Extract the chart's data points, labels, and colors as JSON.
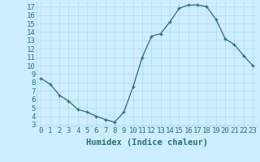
{
  "x": [
    0,
    1,
    2,
    3,
    4,
    5,
    6,
    7,
    8,
    9,
    10,
    11,
    12,
    13,
    14,
    15,
    16,
    17,
    18,
    19,
    20,
    21,
    22,
    23
  ],
  "y": [
    8.5,
    7.8,
    6.5,
    5.8,
    4.8,
    4.5,
    4.0,
    3.6,
    3.3,
    4.5,
    7.5,
    11.0,
    13.5,
    13.8,
    15.2,
    16.8,
    17.2,
    17.2,
    17.0,
    15.5,
    13.2,
    12.5,
    11.2,
    10.0
  ],
  "xlabel": "Humidex (Indice chaleur)",
  "ylim": [
    2.8,
    17.6
  ],
  "xlim": [
    -0.5,
    23.5
  ],
  "yticks": [
    3,
    4,
    5,
    6,
    7,
    8,
    9,
    10,
    11,
    12,
    13,
    14,
    15,
    16,
    17
  ],
  "xticks": [
    0,
    1,
    2,
    3,
    4,
    5,
    6,
    7,
    8,
    9,
    10,
    11,
    12,
    13,
    14,
    15,
    16,
    17,
    18,
    19,
    20,
    21,
    22,
    23
  ],
  "line_color": "#2d6e6e",
  "marker_color": "#2d6e6e",
  "bg_color": "#cceeff",
  "grid_color": "#aadddd",
  "tick_color": "#2d6e6e",
  "label_color": "#2d6e6e",
  "xlabel_fontsize": 7.5,
  "tick_fontsize": 6.5
}
